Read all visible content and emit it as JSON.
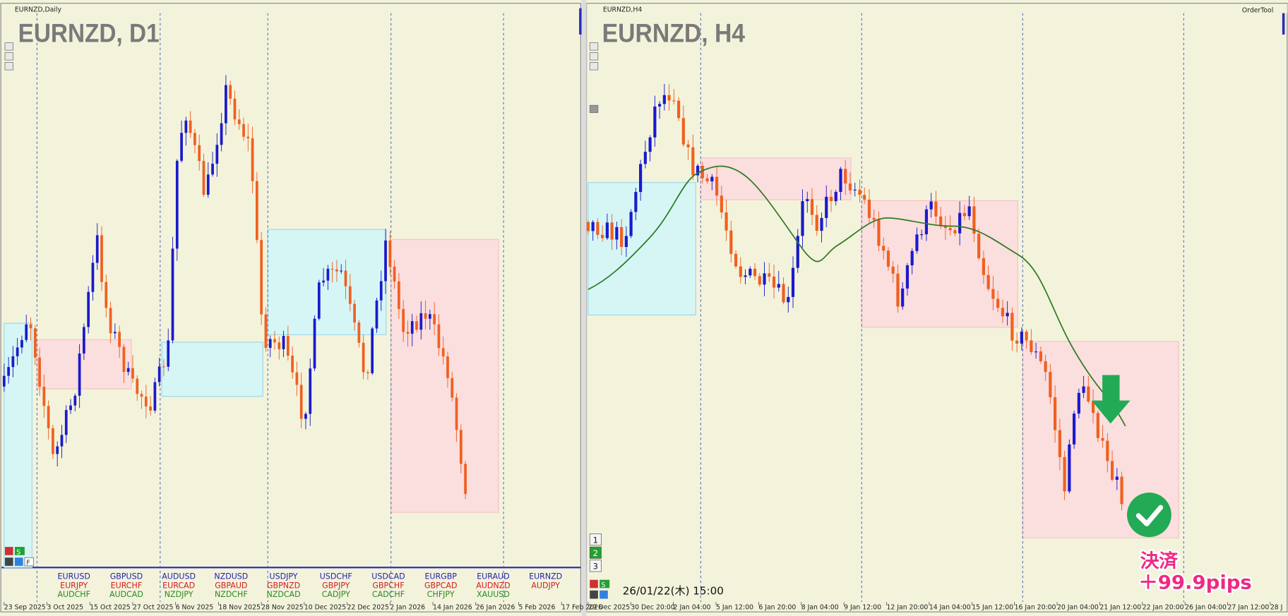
{
  "windows": [
    {
      "title": "EURNZD,Daily",
      "chart_label": "EURNZD, D1",
      "x_axis_labels": [
        "23 Sep 2025",
        "3 Oct 2025",
        "15 Oct 2025",
        "27 Oct 2025",
        "6 Nov 2025",
        "18 Nov 2025",
        "28 Nov 2025",
        "10 Dec 2025",
        "22 Dec 2025",
        "2 Jan 2026",
        "14 Jan 2026",
        "26 Jan 2026",
        "5 Feb 2026",
        "17 Feb 2026"
      ],
      "buttons": [
        "S",
        "F"
      ]
    },
    {
      "title": "EURNZD,H4",
      "chart_label": "EURNZD, H4",
      "toolbar": "OrderTool",
      "x_axis_labels": [
        "29 Dec 2025",
        "30 Dec 20:00",
        "2 Jan 04:00",
        "5 Jan 12:00",
        "6 Jan 20:00",
        "8 Jan 04:00",
        "9 Jan 12:00",
        "12 Jan 20:00",
        "14 Jan 04:00",
        "15 Jan 12:00",
        "16 Jan 20:00",
        "20 Jan 04:00",
        "21 Jan 12:00",
        "22 Jan 20:00",
        "26 Jan 04:00",
        "27 Jan 12:00",
        "28 J"
      ],
      "timeframe_buttons": [
        "1",
        "2",
        "3"
      ],
      "buttons": [
        "S"
      ],
      "timestamp": "26/01/22(木) 15:00",
      "result": [
        "決済",
        "＋99.9pips"
      ]
    }
  ],
  "symbol_list": {
    "rows": [
      [
        "EURUSD",
        "GBPUSD",
        "AUDUSD",
        "NZDUSD",
        "USDJPY",
        "USDCHF",
        "USDCAD",
        "EURGBP",
        "EURAUD",
        "EURNZD"
      ],
      [
        "EURJPY",
        "EURCHF",
        "EURCAD",
        "GBPAUD",
        "GBPNZD",
        "GBPJPY",
        "GBPCHF",
        "GBPCAD",
        "AUDNZD",
        "AUDJPY"
      ],
      [
        "AUDCHF",
        "AUDCAD",
        "NZDJPY",
        "NZDCHF",
        "NZDCAD",
        "CADJPY",
        "CADCHF",
        "CHFJPY",
        "XAUUSD"
      ]
    ]
  }
}
